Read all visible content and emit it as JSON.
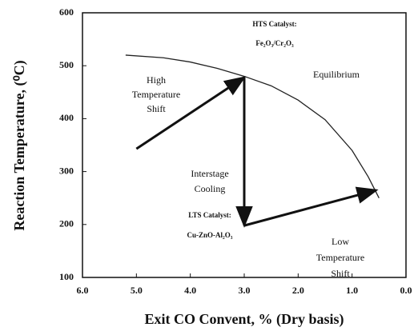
{
  "chart_data": {
    "type": "line",
    "x_label": "Exit CO Convent, % (Dry basis)",
    "y_label": "Reaction Temperature, (⁰C)",
    "xlim": [
      6,
      0
    ],
    "ylim": [
      100,
      600
    ],
    "xticks": [
      {
        "value": 6,
        "label": "6.0"
      },
      {
        "value": 5,
        "label": "5.0"
      },
      {
        "value": 4,
        "label": "4.0"
      },
      {
        "value": 3,
        "label": "3.0"
      },
      {
        "value": 2,
        "label": "2.0"
      },
      {
        "value": 1,
        "label": "1.0"
      },
      {
        "value": 0,
        "label": "0.0"
      }
    ],
    "yticks": [
      100,
      200,
      300,
      400,
      500,
      600
    ],
    "series": [
      {
        "name": "Equilibrium",
        "color": "#222222",
        "x": [
          5.2,
          4.5,
          4.0,
          3.5,
          3.0,
          2.5,
          2.0,
          1.5,
          1.0,
          0.7,
          0.5
        ],
        "values": [
          520,
          515,
          507,
          495,
          480,
          462,
          435,
          398,
          340,
          290,
          250
        ]
      }
    ],
    "arrows": [
      {
        "from": [
          5.0,
          343
        ],
        "to": [
          3.0,
          478
        ]
      },
      {
        "from": [
          3.0,
          478
        ],
        "to": [
          3.0,
          198
        ]
      },
      {
        "from": [
          3.0,
          198
        ],
        "to": [
          0.55,
          265
        ]
      }
    ],
    "annotations": [
      {
        "lines": [
          "HTS Catalyst:"
        ]
      },
      {
        "lines": [
          "Fe₂O₃/Cr₂O₃"
        ]
      },
      {
        "lines": [
          "Equilibrium"
        ]
      },
      {
        "lines": [
          "High",
          "Temperature",
          "Shift"
        ]
      },
      {
        "lines": [
          "Interstage",
          "Cooling"
        ]
      },
      {
        "lines": [
          "LTS Catalyst:"
        ]
      },
      {
        "lines": [
          "Cu-ZnO-Al₂O₃"
        ]
      },
      {
        "lines": [
          "Low",
          "Temperature",
          "Shift"
        ]
      }
    ]
  }
}
